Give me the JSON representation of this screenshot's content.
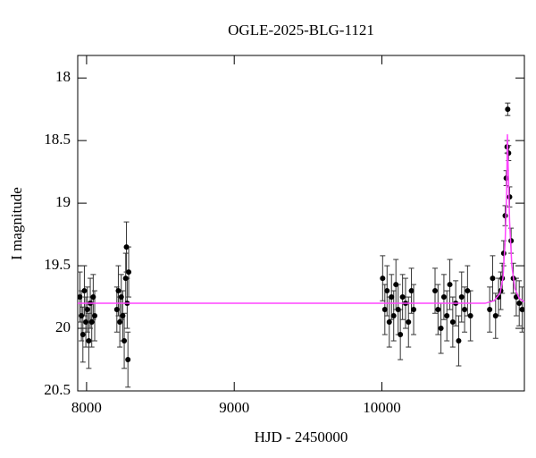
{
  "chart_data": {
    "type": "scatter",
    "title": "OGLE-2025-BLG-1121",
    "x_label": "HJD - 2450000",
    "y_label": "I magnitude",
    "xlim": [
      7940,
      10965
    ],
    "ylim": [
      20.5,
      17.82
    ],
    "xticks": [
      8000,
      9000,
      10000
    ],
    "yticks": [
      18,
      18.5,
      19,
      19.5,
      20,
      20.5
    ],
    "points": {
      "color": "#000000",
      "x": [
        7955,
        7965,
        7975,
        7985,
        7995,
        8005,
        8015,
        8025,
        8035,
        8045,
        8055,
        8205,
        8215,
        8225,
        8235,
        8245,
        8255,
        8265,
        8270,
        8275,
        8280,
        8285,
        10005,
        10020,
        10035,
        10050,
        10065,
        10080,
        10095,
        10110,
        10125,
        10140,
        10160,
        10180,
        10200,
        10215,
        10360,
        10380,
        10400,
        10420,
        10440,
        10460,
        10480,
        10500,
        10520,
        10540,
        10560,
        10580,
        10600,
        10730,
        10750,
        10770,
        10790,
        10805,
        10815,
        10825,
        10835,
        10842,
        10848,
        10852,
        10858,
        10865,
        10875,
        10890,
        10910,
        10930,
        10950
      ],
      "values": [
        19.75,
        19.9,
        20.05,
        19.7,
        19.95,
        19.85,
        20.1,
        19.8,
        19.95,
        19.75,
        19.9,
        19.85,
        19.7,
        19.95,
        19.75,
        19.9,
        20.1,
        19.6,
        19.35,
        19.8,
        20.25,
        19.55,
        19.6,
        19.85,
        19.7,
        19.95,
        19.75,
        19.9,
        19.65,
        19.85,
        20.05,
        19.75,
        19.8,
        19.95,
        19.7,
        19.85,
        19.7,
        19.85,
        20.0,
        19.75,
        19.9,
        19.65,
        19.95,
        19.8,
        20.1,
        19.75,
        19.85,
        19.7,
        19.9,
        19.85,
        19.6,
        19.9,
        19.75,
        19.7,
        19.6,
        19.4,
        19.1,
        18.8,
        18.55,
        18.25,
        18.6,
        18.95,
        19.3,
        19.6,
        19.75,
        19.8,
        19.85
      ],
      "errors": [
        0.2,
        0.2,
        0.22,
        0.2,
        0.2,
        0.18,
        0.22,
        0.2,
        0.2,
        0.18,
        0.2,
        0.18,
        0.2,
        0.2,
        0.18,
        0.2,
        0.22,
        0.2,
        0.2,
        0.2,
        0.22,
        0.2,
        0.18,
        0.2,
        0.2,
        0.2,
        0.18,
        0.2,
        0.2,
        0.2,
        0.2,
        0.18,
        0.2,
        0.2,
        0.18,
        0.2,
        0.18,
        0.2,
        0.2,
        0.18,
        0.2,
        0.2,
        0.2,
        0.18,
        0.2,
        0.2,
        0.18,
        0.2,
        0.2,
        0.18,
        0.18,
        0.18,
        0.15,
        0.15,
        0.12,
        0.1,
        0.08,
        0.06,
        0.05,
        0.05,
        0.06,
        0.08,
        0.1,
        0.12,
        0.15,
        0.18,
        0.18
      ]
    },
    "model": {
      "color": "#ff44ff",
      "x": [
        7940,
        10700,
        10760,
        10800,
        10820,
        10835,
        10845,
        10850,
        10855,
        10865,
        10880,
        10900,
        10930,
        10965
      ],
      "values": [
        19.8,
        19.8,
        19.78,
        19.72,
        19.6,
        19.3,
        18.9,
        18.45,
        18.7,
        19.15,
        19.5,
        19.68,
        19.76,
        19.79
      ]
    }
  }
}
